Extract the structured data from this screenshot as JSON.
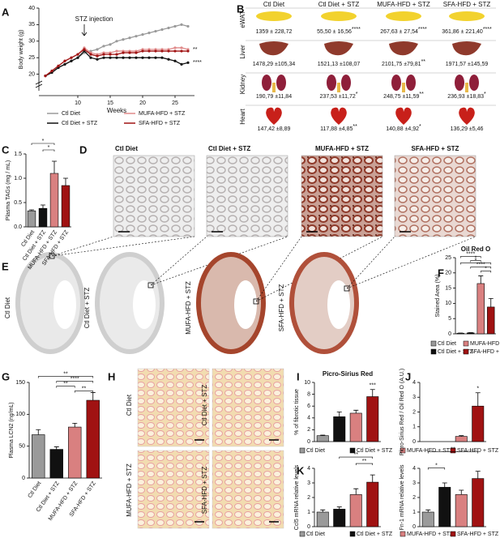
{
  "letters": [
    "A",
    "B",
    "C",
    "D",
    "E",
    "F",
    "G",
    "H",
    "I",
    "J",
    "K"
  ],
  "chart_data": [
    {
      "type": "line",
      "xlabel": "Weeks",
      "ylabel": "Body weight (g)",
      "x": [
        5,
        6,
        7,
        8,
        9,
        10,
        11,
        12,
        13,
        14,
        15,
        16,
        17,
        18,
        19,
        20,
        21,
        22,
        23,
        24,
        25,
        26,
        27
      ],
      "xlim": [
        4,
        28
      ],
      "xticks": [
        10,
        15,
        20,
        25
      ],
      "ylim": [
        15,
        40
      ],
      "yticks": [
        20,
        25,
        30,
        35,
        40
      ],
      "annotations": [
        "STZ injection",
        "**",
        "****"
      ],
      "series": [
        {
          "name": "Ctl Diet",
          "color": "#9a9a9a",
          "values": [
            19.5,
            20.5,
            22,
            23,
            24,
            25,
            26.5,
            27,
            27.5,
            28.5,
            29,
            30,
            30.5,
            31,
            31.5,
            32,
            32.5,
            33,
            33.5,
            34,
            34.5,
            35,
            34.5
          ]
        },
        {
          "name": "Ctl Diet + STZ",
          "color": "#111111",
          "values": [
            19.5,
            20.5,
            22,
            23,
            24,
            25,
            27,
            25,
            24.5,
            25,
            25,
            25,
            25,
            25,
            25,
            25,
            25,
            25,
            25,
            24.5,
            24,
            23,
            23.5
          ]
        },
        {
          "name": "MUFA-HFD + STZ",
          "color": "#e08a8a",
          "values": [
            19.5,
            21,
            22.5,
            24,
            25,
            26,
            28,
            26.5,
            26,
            26.5,
            26.5,
            27,
            27,
            27,
            27,
            27.5,
            27.5,
            27.5,
            27.5,
            27.5,
            28,
            28,
            27.5
          ]
        },
        {
          "name": "SFA-HFD + STZ",
          "color": "#a01212",
          "values": [
            19.5,
            21,
            22.5,
            24,
            25,
            26,
            27.5,
            26,
            25.5,
            26,
            26,
            26,
            26.5,
            26.5,
            26.5,
            27,
            27,
            27,
            27,
            27,
            27,
            27,
            27
          ]
        }
      ]
    },
    {
      "type": "bar",
      "ylabel": "Plasma TAGs (mg / mL)",
      "categories": [
        "Ctl Diet",
        "Ctl Diet + STZ",
        "MUFA-HFD + STZ",
        "SFA-HFD + STZ"
      ],
      "colors": [
        "#9a9a9a",
        "#111111",
        "#d98080",
        "#a01212"
      ],
      "values": [
        0.33,
        0.38,
        1.1,
        0.85
      ],
      "errors": [
        0.02,
        0.07,
        0.25,
        0.15
      ],
      "ylim": [
        0,
        1.5
      ],
      "yticks": [
        {
          "value": 0,
          "label": "0.0"
        },
        0.5,
        {
          "value": 1,
          "label": "1.0"
        },
        1.5
      ],
      "annotations": [
        "*",
        "*"
      ]
    },
    {
      "type": "bar",
      "title": "Oil Red O",
      "ylabel": "Stained Area (%)",
      "categories": [
        "Ctl Diet",
        "Ctl Diet + STZ",
        "MUFA-HFD + STZ",
        "SFA-HFD + STZ"
      ],
      "colors": [
        "#9a9a9a",
        "#111111",
        "#d98080",
        "#a01212"
      ],
      "values": [
        0.2,
        0.3,
        16.5,
        8.8
      ],
      "errors": [
        0.05,
        0.1,
        2.5,
        2.8
      ],
      "ylim": [
        0,
        25
      ],
      "yticks": [
        0,
        5,
        10,
        15,
        20,
        25
      ],
      "annotations": [
        "****",
        "*",
        "*",
        "****",
        "*"
      ]
    },
    {
      "type": "bar",
      "ylabel": "Plasma LCN2 (ng/mL)",
      "categories": [
        "Ctl Diet",
        "Ctl Diet + STZ",
        "MUFA-HFD + STZ",
        "SFA-HFD + STZ"
      ],
      "colors": [
        "#9a9a9a",
        "#111111",
        "#d98080",
        "#a01212"
      ],
      "values": [
        68,
        45,
        80,
        122
      ],
      "errors": [
        8,
        4,
        6,
        12
      ],
      "ylim": [
        0,
        150
      ],
      "yticks": [
        0,
        50,
        100,
        150
      ],
      "annotations": [
        "**",
        "****",
        "**",
        "**"
      ]
    },
    {
      "type": "bar",
      "title": "Picro-Sirius Red",
      "ylabel": "% of fibrotic tissue",
      "categories": [
        "Ctl Diet",
        "Ctl Diet + STZ",
        "MUFA-HFD + STZ",
        "SFA-HFD + STZ"
      ],
      "colors": [
        "#9a9a9a",
        "#111111",
        "#d98080",
        "#a01212"
      ],
      "values": [
        1,
        4.2,
        4.8,
        7.6
      ],
      "errors": [
        0.1,
        0.8,
        0.5,
        1.2
      ],
      "ylim": [
        0,
        10
      ],
      "yticks": [
        0,
        2,
        4,
        6,
        8,
        10
      ],
      "annotations": [
        "***"
      ]
    },
    {
      "type": "bar",
      "ylabel": "Picro-Sirius Red / Oil Red O (A.U.)",
      "colors": [
        "#9a9a9a",
        "#111111",
        "#d98080",
        "#a01212"
      ],
      "values": [
        null,
        null,
        0.35,
        2.4
      ],
      "errors": [
        null,
        null,
        0.05,
        0.9
      ],
      "ylim": [
        0,
        4
      ],
      "yticks": [
        0,
        1,
        2,
        3,
        4
      ],
      "annotations": [
        "*"
      ]
    },
    {
      "type": "bar",
      "ylabel": "Ccl5 mRNA relative levels",
      "categories": [
        "Ctl Diet",
        "Ctl Diet + STZ",
        "MUFA-HFD + STZ",
        "SFA-HFD + STZ"
      ],
      "colors": [
        "#9a9a9a",
        "#111111",
        "#d98080",
        "#a01212"
      ],
      "values": [
        1,
        1.2,
        2.2,
        3.05
      ],
      "errors": [
        0.15,
        0.15,
        0.4,
        0.5
      ],
      "ylim": [
        0,
        4
      ],
      "yticks": [
        0,
        1,
        2,
        3,
        4
      ],
      "annotations": [
        "**",
        "**"
      ]
    },
    {
      "type": "bar",
      "ylabel": "Fn-1 mRNA relative levels",
      "colors": [
        "#9a9a9a",
        "#111111",
        "#d98080",
        "#a01212"
      ],
      "values": [
        1,
        2.7,
        2.2,
        3.3
      ],
      "errors": [
        0.15,
        0.3,
        0.3,
        0.5
      ],
      "ylim": [
        0,
        4
      ],
      "yticks": [
        0,
        1,
        2,
        3,
        4
      ],
      "annotations": [
        "*",
        "**"
      ]
    }
  ],
  "organ_table": {
    "columns": [
      "Ctl Diet",
      "Ctl Diet + STZ",
      "MUFA-HFD + STZ",
      "SFA-HFD + STZ"
    ],
    "rows": [
      {
        "organ": "eWAT",
        "cells": [
          {
            "text": "1359 ± 228,72"
          },
          {
            "text": "55,50 ± 16,56",
            "sig": "****"
          },
          {
            "text": "267,63 ± 27,54",
            "sig": "****"
          },
          {
            "text": "361,86 ± 221,40",
            "sig": "****"
          }
        ]
      },
      {
        "organ": "Liver",
        "cells": [
          {
            "text": "1478,29 ±105,34"
          },
          {
            "text": "1521,13 ±108,07"
          },
          {
            "text": "2101,75 ±79,81",
            "sig": "**"
          },
          {
            "text": "1971,57 ±145,59"
          }
        ]
      },
      {
        "organ": "Kidney",
        "cells": [
          {
            "text": "190,79 ±11,84"
          },
          {
            "text": "237,53 ±11,72",
            "sig": "*"
          },
          {
            "text": "248,75 ±11,59",
            "sig": "**"
          },
          {
            "text": "236,93 ±18,83",
            "sig": "*"
          }
        ]
      },
      {
        "organ": "Heart",
        "cells": [
          {
            "text": "147,42 ±8,89"
          },
          {
            "text": "117,88 ±4,85",
            "sig": "**"
          },
          {
            "text": "140,88 ±4,92",
            "sig": "*"
          },
          {
            "text": "136,29 ±5,46"
          }
        ]
      }
    ]
  },
  "micrographs": {
    "d_titles": [
      "Ctl Diet",
      "Ctl Diet + STZ",
      "MUFA-HFD + STZ",
      "SFA-HFD + STZ"
    ],
    "e_labels": [
      "Ctl Diet",
      "Ctl Diet + STZ",
      "MUFA-HFD + STZ",
      "SFA-HFD + STZ"
    ],
    "h_labels": [
      "Ctl Diet",
      "Ctl Diet + STZ",
      "MUFA-HFD + STZ",
      "SFA-HFD + STZ"
    ]
  }
}
